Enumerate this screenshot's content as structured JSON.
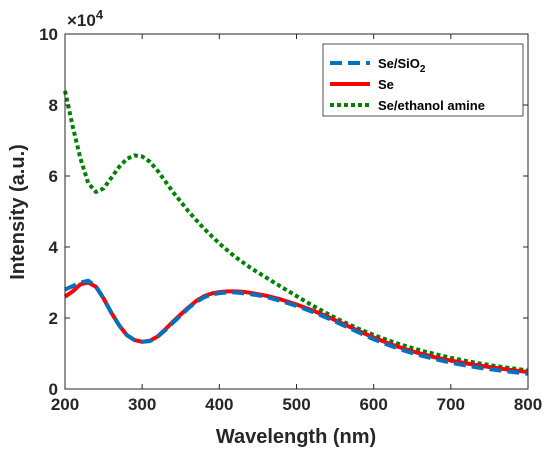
{
  "chart_data": {
    "type": "line",
    "xlabel": "Wavelength (nm)",
    "ylabel": "Intensity (a.u.)",
    "y_multiplier_base": "×10",
    "y_multiplier_exp": "4",
    "xlim": [
      200,
      800
    ],
    "ylim": [
      0,
      10
    ],
    "xticks": [
      200,
      300,
      400,
      500,
      600,
      700,
      800
    ],
    "yticks": [
      0,
      2,
      4,
      6,
      8,
      10
    ],
    "grid": false,
    "legend_position": "top-right",
    "series": [
      {
        "name": "Se/SiO",
        "name_subscript": "2",
        "color": "#0072BD",
        "style": "dashed",
        "x": [
          200,
          210,
          220,
          230,
          240,
          250,
          260,
          270,
          280,
          290,
          300,
          310,
          320,
          330,
          340,
          350,
          360,
          370,
          380,
          390,
          400,
          410,
          420,
          430,
          440,
          450,
          460,
          480,
          500,
          520,
          540,
          560,
          580,
          600,
          620,
          640,
          660,
          680,
          700,
          720,
          740,
          760,
          780,
          800
        ],
        "y": [
          2.8,
          2.9,
          3.0,
          3.05,
          2.9,
          2.55,
          2.15,
          1.8,
          1.52,
          1.38,
          1.33,
          1.35,
          1.47,
          1.66,
          1.87,
          2.07,
          2.28,
          2.45,
          2.58,
          2.66,
          2.7,
          2.72,
          2.72,
          2.7,
          2.67,
          2.64,
          2.6,
          2.48,
          2.34,
          2.18,
          2.0,
          1.8,
          1.6,
          1.4,
          1.23,
          1.08,
          0.95,
          0.84,
          0.74,
          0.66,
          0.59,
          0.53,
          0.48,
          0.43
        ]
      },
      {
        "name": "Se",
        "color": "#FF0000",
        "style": "solid",
        "x": [
          200,
          210,
          220,
          230,
          240,
          250,
          260,
          270,
          280,
          290,
          300,
          310,
          320,
          330,
          340,
          350,
          360,
          370,
          380,
          390,
          400,
          410,
          420,
          430,
          440,
          450,
          460,
          480,
          500,
          520,
          540,
          560,
          580,
          600,
          620,
          640,
          660,
          680,
          700,
          720,
          740,
          760,
          780,
          800
        ],
        "y": [
          2.6,
          2.75,
          2.95,
          3.0,
          2.88,
          2.55,
          2.15,
          1.8,
          1.52,
          1.38,
          1.33,
          1.36,
          1.48,
          1.68,
          1.9,
          2.1,
          2.3,
          2.48,
          2.61,
          2.69,
          2.73,
          2.75,
          2.75,
          2.74,
          2.71,
          2.67,
          2.63,
          2.52,
          2.38,
          2.22,
          2.04,
          1.84,
          1.64,
          1.45,
          1.28,
          1.13,
          1.0,
          0.89,
          0.8,
          0.72,
          0.65,
          0.59,
          0.53,
          0.48
        ]
      },
      {
        "name": "Se/ethanol amine",
        "color": "#008000",
        "style": "dotted",
        "x": [
          200,
          210,
          220,
          230,
          240,
          250,
          260,
          270,
          280,
          290,
          300,
          310,
          320,
          330,
          340,
          360,
          380,
          400,
          420,
          440,
          460,
          480,
          500,
          520,
          540,
          560,
          580,
          600,
          620,
          640,
          660,
          680,
          700,
          720,
          740,
          760,
          780,
          800
        ],
        "y": [
          8.4,
          7.4,
          6.5,
          5.8,
          5.55,
          5.65,
          5.95,
          6.25,
          6.48,
          6.58,
          6.55,
          6.4,
          6.15,
          5.85,
          5.55,
          5.0,
          4.52,
          4.1,
          3.73,
          3.42,
          3.15,
          2.88,
          2.62,
          2.36,
          2.12,
          1.9,
          1.7,
          1.52,
          1.36,
          1.22,
          1.09,
          0.98,
          0.88,
          0.79,
          0.71,
          0.64,
          0.58,
          0.52
        ]
      }
    ]
  }
}
